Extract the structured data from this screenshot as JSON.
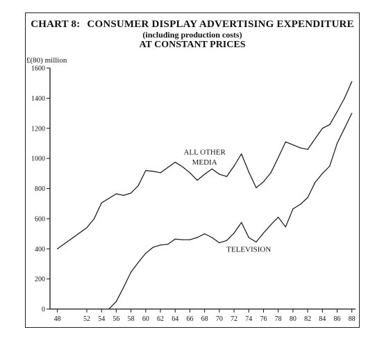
{
  "title": {
    "prefix": "CHART 8:",
    "main": "CONSUMER DISPLAY ADVERTISING EXPENDITURE",
    "subtitle": "(including production costs)",
    "line3": "AT CONSTANT PRICES"
  },
  "chart_data": {
    "type": "line",
    "title": "CHART 8:   CONSUMER DISPLAY ADVERTISING EXPENDITURE (including production costs) AT CONSTANT PRICES",
    "ylabel": "£(80) million",
    "xlabel": "",
    "ylim": [
      0,
      1600
    ],
    "xlim": [
      47,
      88.5
    ],
    "y_ticks": [
      0,
      200,
      400,
      600,
      800,
      1000,
      1200,
      1400,
      1600
    ],
    "x_ticks": [
      48,
      52,
      54,
      56,
      58,
      60,
      62,
      64,
      66,
      68,
      70,
      72,
      74,
      76,
      78,
      80,
      82,
      84,
      86,
      88
    ],
    "grid": false,
    "series": [
      {
        "name": "ALL OTHER MEDIA",
        "x": [
          48,
          49,
          50,
          51,
          52,
          53,
          54,
          55,
          56,
          57,
          58,
          59,
          60,
          61,
          62,
          63,
          64,
          65,
          66,
          67,
          68,
          69,
          70,
          71,
          72,
          73,
          74,
          75,
          76,
          77,
          78,
          79,
          80,
          81,
          82,
          83,
          84,
          85,
          86,
          87,
          88
        ],
        "values": [
          400,
          435,
          470,
          505,
          540,
          600,
          705,
          735,
          765,
          755,
          770,
          820,
          920,
          915,
          905,
          940,
          975,
          945,
          905,
          855,
          895,
          930,
          895,
          880,
          950,
          1030,
          910,
          805,
          845,
          905,
          1005,
          1110,
          1090,
          1070,
          1060,
          1130,
          1200,
          1225,
          1310,
          1400,
          1510
        ]
      },
      {
        "name": "TELEVISION",
        "x": [
          55,
          56,
          57,
          58,
          59,
          60,
          61,
          62,
          63,
          64,
          65,
          66,
          67,
          68,
          69,
          70,
          71,
          72,
          73,
          74,
          75,
          76,
          77,
          78,
          79,
          80,
          81,
          82,
          83,
          84,
          85,
          86,
          87,
          88
        ],
        "values": [
          0,
          50,
          145,
          245,
          310,
          370,
          410,
          425,
          430,
          465,
          460,
          460,
          475,
          500,
          475,
          440,
          455,
          505,
          575,
          475,
          445,
          505,
          560,
          610,
          545,
          665,
          695,
          740,
          840,
          900,
          950,
          1100,
          1200,
          1300
        ]
      }
    ],
    "annotations": [
      {
        "text": "ALL OTHER",
        "x": 68,
        "y": 1025
      },
      {
        "text": "MEDIA",
        "x": 68,
        "y": 960
      },
      {
        "text": "TELEVISION",
        "x": 74,
        "y": 380
      }
    ]
  }
}
